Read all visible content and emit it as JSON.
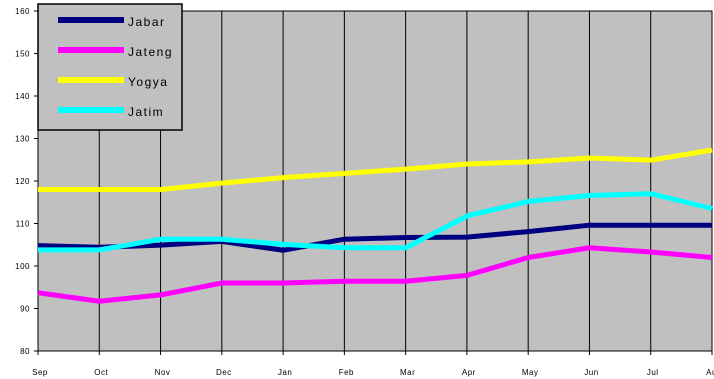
{
  "chart_data": {
    "type": "line",
    "categories": [
      "Sep",
      "Oct",
      "Nov",
      "Dec",
      "Jan",
      "Feb",
      "Mar",
      "Apr",
      "May",
      "Jun",
      "Jul",
      "Aug"
    ],
    "ylim": [
      80,
      160
    ],
    "yticks": [
      80,
      90,
      100,
      110,
      120,
      130,
      140,
      150,
      160
    ],
    "grid": "vertical",
    "legend": "top-left",
    "series": [
      {
        "name": "Jabar",
        "color": "#000080",
        "values": [
          104.8,
          104.4,
          104.9,
          105.8,
          103.7,
          106.3,
          106.7,
          106.8,
          108.1,
          109.6,
          109.6,
          109.6
        ]
      },
      {
        "name": "Jateng",
        "color": "#ff00ff",
        "values": [
          93.7,
          91.7,
          93.2,
          96.0,
          96.0,
          96.4,
          96.4,
          97.8,
          102.0,
          104.3,
          103.3,
          102.0
        ]
      },
      {
        "name": "Yogya",
        "color": "#ffff00",
        "values": [
          118.0,
          118.0,
          118.0,
          119.5,
          120.8,
          121.8,
          122.8,
          124.0,
          124.5,
          125.4,
          124.9,
          127.3
        ]
      },
      {
        "name": "Jatim",
        "color": "#00ffff",
        "values": [
          103.8,
          103.8,
          106.3,
          106.3,
          105.1,
          104.3,
          104.3,
          111.8,
          115.2,
          116.6,
          117.0,
          113.5
        ]
      }
    ]
  }
}
